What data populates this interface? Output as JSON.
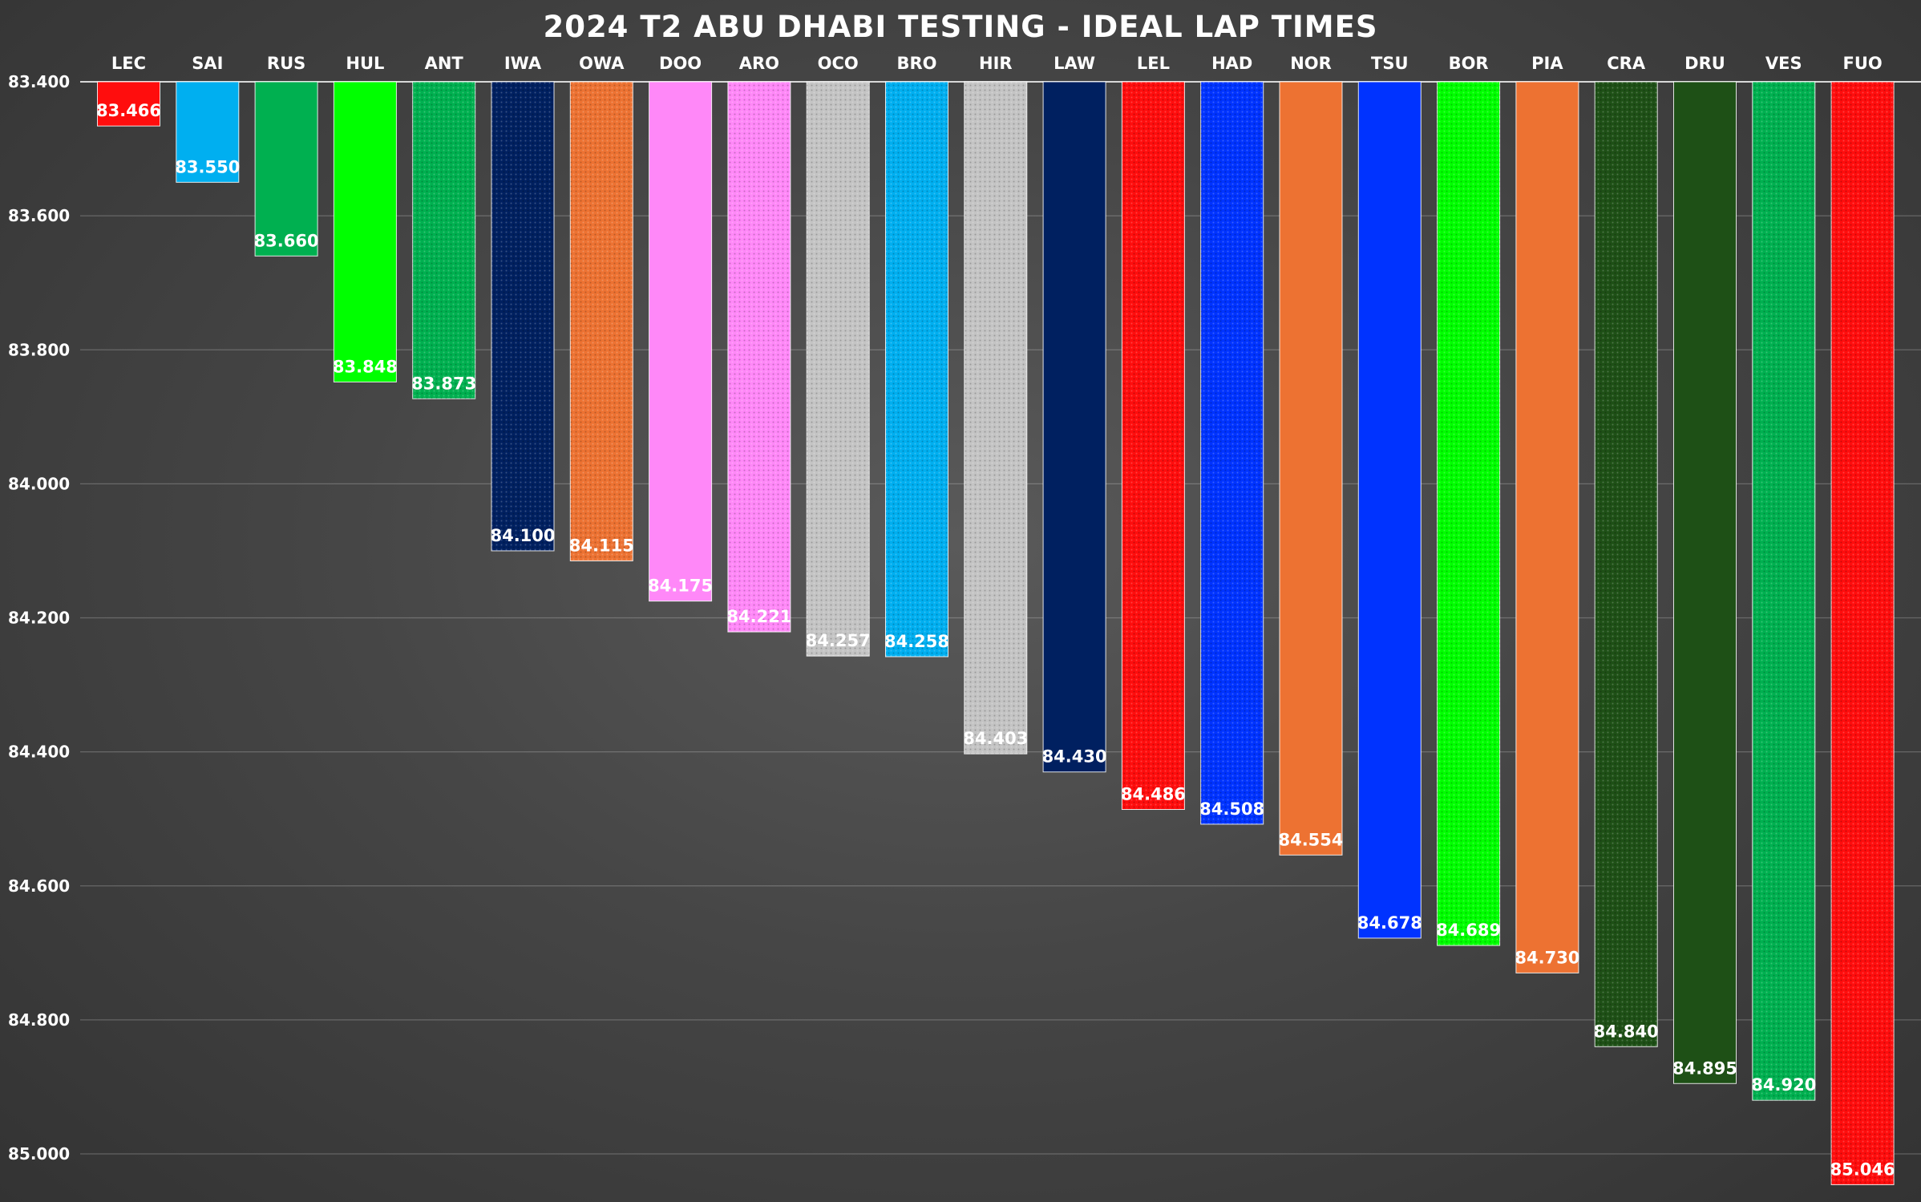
{
  "chart_data": {
    "type": "bar",
    "title": "2024 T2 ABU DHABI TESTING - IDEAL LAP TIMES",
    "xlabel": "",
    "ylabel": "",
    "y_inverted": true,
    "ylim": [
      83.4,
      85.0
    ],
    "yticks": [
      "83.400",
      "83.600",
      "83.800",
      "84.000",
      "84.200",
      "84.400",
      "84.600",
      "84.800",
      "85.000"
    ],
    "grid": true,
    "legend": "none",
    "categories": [
      "LEC",
      "SAI",
      "RUS",
      "HUL",
      "ANT",
      "IWA",
      "OWA",
      "DOO",
      "ARO",
      "OCO",
      "BRO",
      "HIR",
      "LAW",
      "LEL",
      "HAD",
      "NOR",
      "TSU",
      "BOR",
      "PIA",
      "CRA",
      "DRU",
      "VES",
      "FUO"
    ],
    "values": [
      83.466,
      83.55,
      83.66,
      83.848,
      83.873,
      84.1,
      84.115,
      84.175,
      84.221,
      84.257,
      84.258,
      84.403,
      84.43,
      84.486,
      84.508,
      84.554,
      84.678,
      84.689,
      84.73,
      84.84,
      84.895,
      84.92,
      85.046
    ],
    "value_labels": [
      "83.466",
      "83.550",
      "83.660",
      "83.848",
      "83.873",
      "84.100",
      "84.115",
      "84.175",
      "84.221",
      "84.257",
      "84.258",
      "84.403",
      "84.430",
      "84.486",
      "84.508",
      "84.554",
      "84.678",
      "84.689",
      "84.730",
      "84.840",
      "84.895",
      "84.920",
      "85.046"
    ],
    "colors": [
      "#ff0d0d",
      "#00aff0",
      "#00b050",
      "#00ff00",
      "#00b050",
      "#002060",
      "#ed7232",
      "#ff88f8",
      "#ff88f8",
      "#c4c4c4",
      "#00aff0",
      "#c4c4c4",
      "#002060",
      "#ff0d0d",
      "#0033ff",
      "#ed7232",
      "#0033ff",
      "#00ff00",
      "#ed7232",
      "#1e5016",
      "#1e5016",
      "#00b050",
      "#ff0d0d"
    ],
    "patterned": [
      false,
      false,
      false,
      false,
      true,
      true,
      true,
      false,
      true,
      true,
      true,
      true,
      false,
      true,
      true,
      false,
      false,
      true,
      false,
      true,
      false,
      true,
      true
    ],
    "label_colors": [
      "#ffffff",
      "#ffffff",
      "#ffffff",
      "#ffffff",
      "#ffffff",
      "#ffffff",
      "#ffffff",
      "#ffffff",
      "#ffffff",
      "#ffffff",
      "#ffffff",
      "#ffffff",
      "#ffffff",
      "#ffffff",
      "#ffffff",
      "#ffffff",
      "#ffffff",
      "#ffffff",
      "#ffffff",
      "#ffffff",
      "#ffffff",
      "#ffffff",
      "#ffffff"
    ]
  }
}
